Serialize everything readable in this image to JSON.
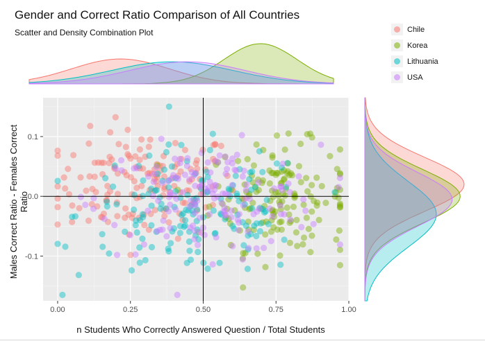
{
  "chart_data": {
    "type": "scatter",
    "title": "Gender and Correct Ratio Comparison of All Countries",
    "subtitle": "Scatter and Density Combination Plot",
    "xlabel": "n Students Who Correctly Answered Question / Total Students",
    "ylabel": "Males Correct Ratio - Females Correct Ratio",
    "xlim": [
      -0.05,
      1.0
    ],
    "ylim": [
      -0.175,
      0.165
    ],
    "x_ticks": [
      "0.00",
      "0.25",
      "0.50",
      "0.75",
      "1.00"
    ],
    "x_tick_values": [
      0.0,
      0.25,
      0.5,
      0.75,
      1.0
    ],
    "y_ticks": [
      "-0.1",
      "0.0",
      "0.1"
    ],
    "y_tick_values": [
      -0.1,
      0.0,
      0.1
    ],
    "reference_lines": {
      "x": 0.5,
      "y": 0.0
    },
    "grid": true,
    "legend_position": "top-right",
    "marginal_plots": [
      "top: density of x",
      "right: density of y"
    ],
    "series": [
      {
        "name": "Chile",
        "color": "#F8766D",
        "x_mean": 0.3,
        "x_sd": 0.16,
        "y_mean": 0.02,
        "y_sd": 0.045,
        "n": 160
      },
      {
        "name": "Korea",
        "color": "#7CAE00",
        "x_mean": 0.76,
        "x_sd": 0.12,
        "y_mean": 0.0,
        "y_sd": 0.045,
        "n": 160
      },
      {
        "name": "Lithuania",
        "color": "#00BFC4",
        "x_mean": 0.47,
        "x_sd": 0.2,
        "y_mean": -0.03,
        "y_sd": 0.055,
        "n": 160
      },
      {
        "name": "USA",
        "color": "#C77CFF",
        "x_mean": 0.52,
        "x_sd": 0.19,
        "y_mean": -0.005,
        "y_sd": 0.045,
        "n": 160
      }
    ]
  }
}
